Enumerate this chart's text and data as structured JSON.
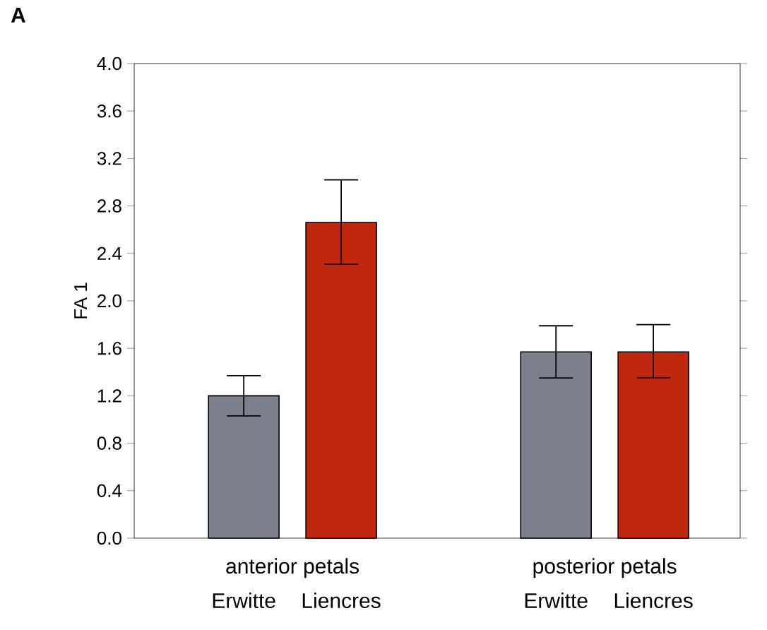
{
  "chart_data": {
    "type": "bar",
    "title": "A",
    "ylabel": "FA 1",
    "categories": [
      "Erwitte",
      "Liencres",
      "Erwitte",
      "Liencres"
    ],
    "values": [
      1.2,
      2.66,
      1.57,
      1.57
    ],
    "errors": [
      [
        1.03,
        1.37
      ],
      [
        2.31,
        3.02
      ],
      [
        1.35,
        1.79
      ],
      [
        1.35,
        1.8
      ]
    ],
    "colors": [
      "#7b808c",
      "#c0280e",
      "#7b808c",
      "#c0280e"
    ],
    "annotations": [
      "anterior petals",
      "posterior petals"
    ],
    "ylim": [
      0,
      4
    ],
    "yticks": [
      {
        "value": 0,
        "label": "0.0"
      },
      {
        "value": 0.4,
        "label": "0.4"
      },
      {
        "value": 0.8,
        "label": "0.8"
      },
      {
        "value": 1.2,
        "label": "1.2"
      },
      {
        "value": 1.6,
        "label": "1.6"
      },
      {
        "value": 2.0,
        "label": "2.0"
      },
      {
        "value": 2.4,
        "label": "2.4"
      },
      {
        "value": 2.8,
        "label": "2.8"
      },
      {
        "value": 3.2,
        "label": "3.2"
      },
      {
        "value": 3.6,
        "label": "3.6"
      },
      {
        "value": 4.0,
        "label": "4.0"
      }
    ],
    "grid": false
  }
}
